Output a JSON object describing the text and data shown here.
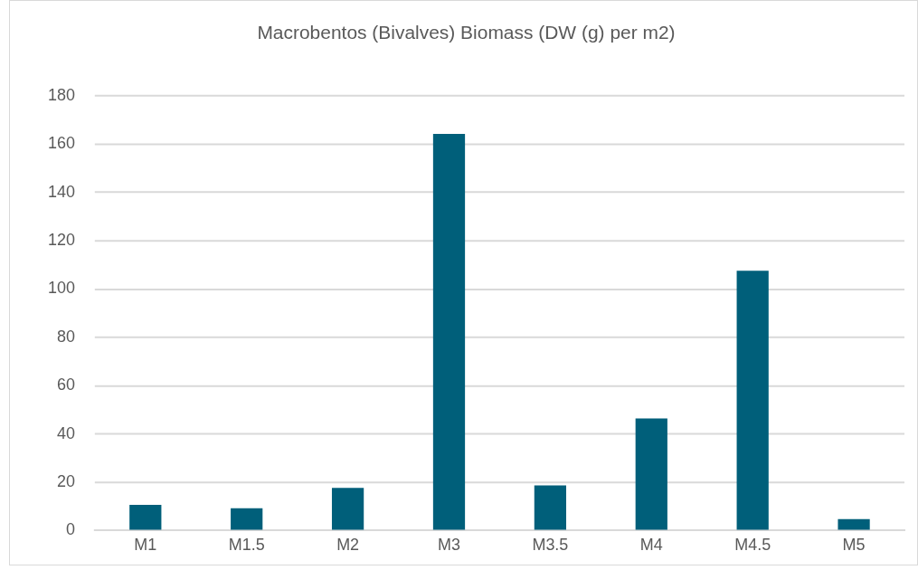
{
  "chart_data": {
    "type": "bar",
    "title": "Macrobentos (Bivalves) Biomass (DW (g) per m2)",
    "categories": [
      "M1",
      "M1.5",
      "M2",
      "M3",
      "M3.5",
      "M4",
      "M4.5",
      "M5"
    ],
    "values": [
      10.7,
      9.3,
      17.7,
      164.2,
      18.7,
      46.4,
      107.6,
      4.8
    ],
    "color": "#005f7a",
    "ylim": [
      0,
      180
    ],
    "yticks": [
      0,
      20,
      40,
      60,
      80,
      100,
      120,
      140,
      160,
      180
    ],
    "grid": "y"
  }
}
